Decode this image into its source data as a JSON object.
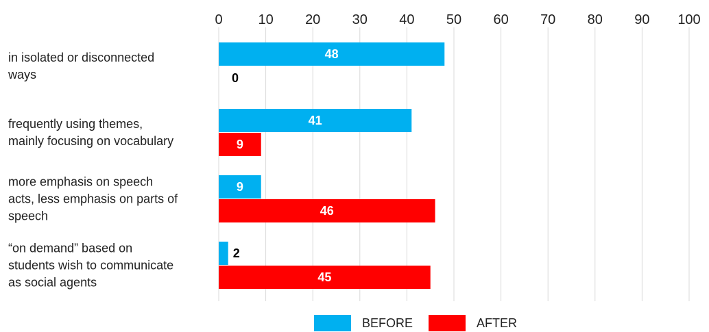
{
  "chart_data": {
    "type": "bar",
    "orientation": "horizontal",
    "categories": [
      [
        "in isolated or disconnected",
        "ways"
      ],
      [
        "frequently using themes,",
        "mainly focusing on vocabulary"
      ],
      [
        "more emphasis on speech",
        "acts, less emphasis on parts of",
        "speech"
      ],
      [
        "“on demand” based on",
        "students wish to communicate",
        "as social agents"
      ]
    ],
    "series": [
      {
        "name": "BEFORE",
        "color": "#00b0f0",
        "values": [
          48,
          41,
          9,
          2
        ]
      },
      {
        "name": "AFTER",
        "color": "#ff0000",
        "values": [
          0,
          9,
          46,
          45
        ]
      }
    ],
    "xlim": [
      0,
      100
    ],
    "xticks": [
      0,
      10,
      20,
      30,
      40,
      50,
      60,
      70,
      80,
      90,
      100
    ],
    "grid": true,
    "legend_position": "bottom"
  }
}
